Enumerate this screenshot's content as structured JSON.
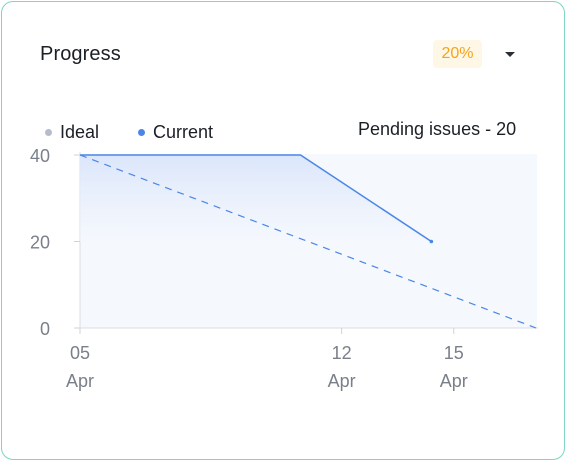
{
  "header": {
    "title": "Progress",
    "percent": "20%"
  },
  "legend": {
    "ideal": "Ideal",
    "current": "Current"
  },
  "pending_text": "Pending issues - 20",
  "colors": {
    "accent_blue": "#4a86e8",
    "ideal_dot": "#b5bccb",
    "badge_text": "#f2a51a",
    "badge_bg": "#fff7e6",
    "card_border": "#7fd3c7"
  },
  "icons": {
    "dropdown": "caret-down-icon"
  },
  "chart_data": {
    "type": "line",
    "ylim": [
      0,
      40
    ],
    "yticks": [
      "40",
      "20",
      "0"
    ],
    "xticks": [
      {
        "day": "05",
        "month": "Apr",
        "x": 5
      },
      {
        "day": "12",
        "month": "Apr",
        "x": 12
      },
      {
        "day": "15",
        "month": "Apr",
        "x": 15
      }
    ],
    "xlim": [
      5,
      17.2
    ],
    "series": [
      {
        "name": "Ideal",
        "style": "dashed",
        "points": [
          [
            5,
            40
          ],
          [
            17.2,
            0
          ]
        ]
      },
      {
        "name": "Current",
        "style": "solid-area",
        "points": [
          [
            5,
            40
          ],
          [
            10.9,
            40
          ],
          [
            14.4,
            20
          ]
        ]
      }
    ]
  }
}
